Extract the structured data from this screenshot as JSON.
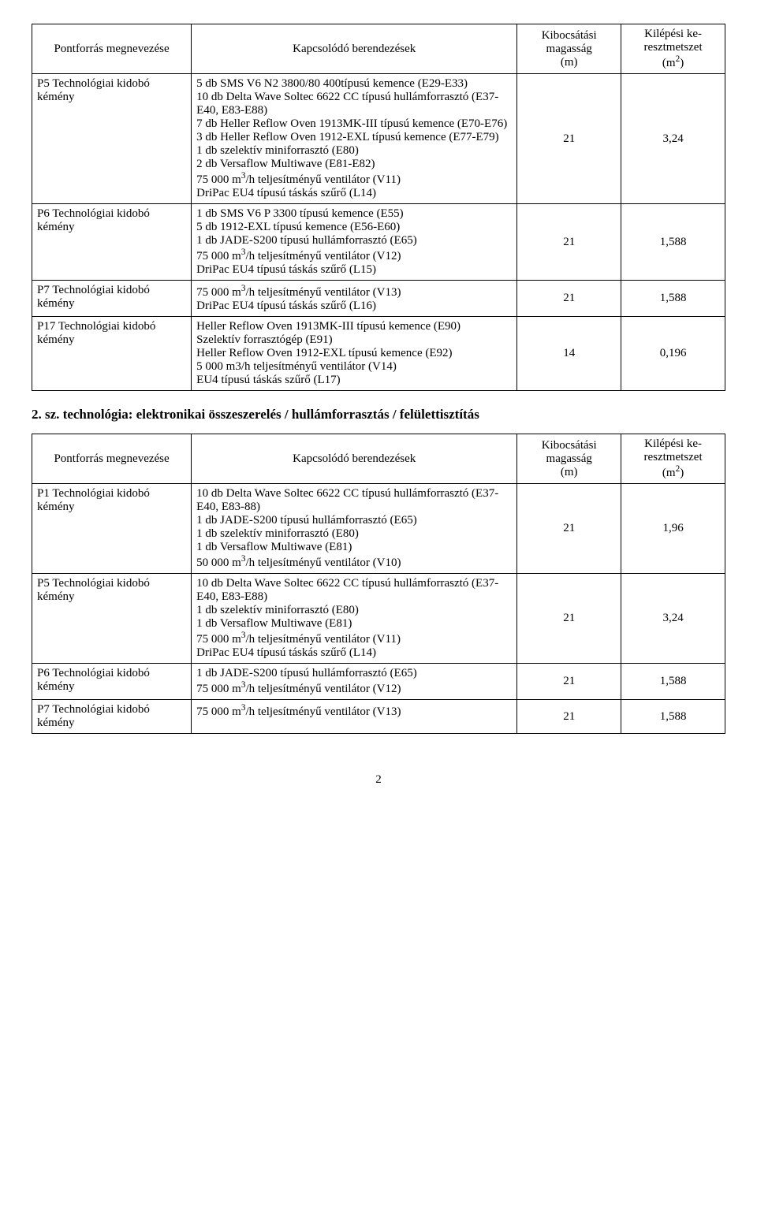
{
  "table1": {
    "headers": [
      "Pontforrás megnevezése",
      "Kapcsolódó berendezések",
      "Kibocsátási magasság (m)",
      "Kilépési keresztmetszet (m²)"
    ],
    "rows": [
      {
        "c0": "P5 Technológiai kidobó kémény",
        "c1": "5 db SMS V6 N2 3800/80 400típusú kemence (E29-E33)\n10 db Delta Wave Soltec 6622 CC típusú hullámforrasztó (E37-E40, E83-E88)\n7 db Heller Reflow Oven 1913MK-III típusú kemence (E70-E76)\n3 db Heller Reflow Oven 1912-EXL típusú kemence (E77-E79)\n1 db szelektív miniforrasztó (E80)\n2 db Versaflow Multiwave (E81-E82)\n75 000 m³/h teljesítményű ventilátor (V11)\nDriPac EU4 típusú táskás szűrő (L14)",
        "c2": "21",
        "c3": "3,24"
      },
      {
        "c0": "P6 Technológiai kidobó kémény",
        "c1": "1 db SMS V6 P 3300 típusú kemence (E55)\n5 db 1912-EXL típusú kemence (E56-E60)\n1 db JADE-S200 típusú hullámforrasztó (E65)\n75 000 m³/h teljesítményű ventilátor (V12)\nDriPac EU4 típusú táskás szűrő (L15)",
        "c2": "21",
        "c3": "1,588"
      },
      {
        "c0": "P7 Technológiai kidobó kémény",
        "c1": "75 000 m³/h teljesítményű ventilátor (V13)\nDriPac EU4 típusú táskás szűrő (L16)",
        "c2": "21",
        "c3": "1,588"
      },
      {
        "c0": "P17 Technológiai kidobó kémény",
        "c1": "Heller Reflow Oven 1913MK-III típusú kemence (E90)\nSzelektív forrasztógép (E91)\nHeller Reflow Oven 1912-EXL típusú kemence (E92)\n5 000 m3/h teljesítményű ventilátor (V14)\nEU4 típusú táskás szűrő (L17)",
        "c2": "14",
        "c3": "0,196"
      }
    ]
  },
  "section_heading": "2. sz. technológia: elektronikai összeszerelés / hullámforrasztás / felülettisztítás",
  "table2": {
    "headers": [
      "Pontforrás megnevezése",
      "Kapcsolódó berendezések",
      "Kibocsátási magasság (m)",
      "Kilépési keresztmetszet (m²)"
    ],
    "rows": [
      {
        "c0": "P1 Technológiai kidobó kémény",
        "c1": "10 db Delta Wave Soltec 6622 CC típusú hullámforrasztó (E37-E40, E83-88)\n1 db JADE-S200 típusú hullámforrasztó (E65)\n1 db szelektív miniforrasztó (E80)\n1 db Versaflow Multiwave (E81)\n50 000 m³/h teljesítményű ventilátor (V10)",
        "c2": "21",
        "c3": "1,96"
      },
      {
        "c0": "P5 Technológiai kidobó kémény",
        "c1": "10 db Delta Wave Soltec 6622 CC típusú hullámforrasztó (E37-E40, E83-E88)\n1 db szelektív miniforrasztó (E80)\n1 db Versaflow Multiwave (E81)\n75 000 m³/h teljesítményű ventilátor (V11)\nDriPac EU4 típusú táskás szűrő (L14)",
        "c2": "21",
        "c3": "3,24"
      },
      {
        "c0": "P6 Technológiai kidobó kémény",
        "c1": "1 db JADE-S200 típusú hullámforrasztó (E65)\n75 000 m³/h teljesítményű ventilátor (V12)",
        "c2": "21",
        "c3": "1,588"
      },
      {
        "c0": "P7 Technológiai kidobó kémény",
        "c1": "75 000 m³/h teljesítményű ventilátor (V13)",
        "c2": "21",
        "c3": "1,588"
      }
    ]
  },
  "page_number": "2",
  "colwidths": {
    "c0": "23%",
    "c1": "47%",
    "c2": "15%",
    "c3": "15%"
  }
}
